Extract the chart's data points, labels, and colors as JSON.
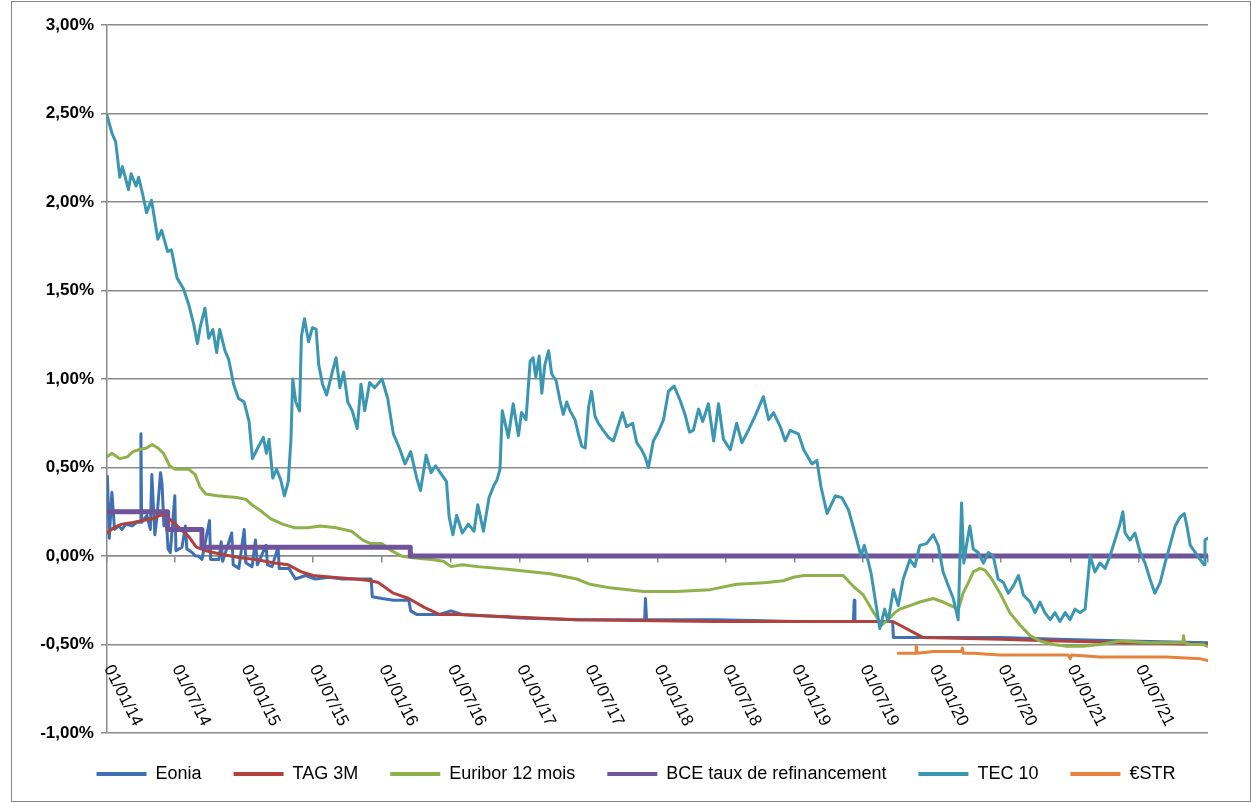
{
  "chart_data": {
    "type": "line",
    "marker": "none",
    "grid": "y",
    "legend": "bottom",
    "xlim": [
      "2014-01-01",
      "2022-01-01"
    ],
    "xticks": [
      {
        "value": "2014-01-01",
        "label": "01/01/14"
      },
      {
        "value": "2014-07-01",
        "label": "01/07/14"
      },
      {
        "value": "2015-01-01",
        "label": "01/01/15"
      },
      {
        "value": "2015-07-01",
        "label": "01/07/15"
      },
      {
        "value": "2016-01-01",
        "label": "01/01/16"
      },
      {
        "value": "2016-07-01",
        "label": "01/07/16"
      },
      {
        "value": "2017-01-01",
        "label": "01/01/17"
      },
      {
        "value": "2017-07-01",
        "label": "01/07/17"
      },
      {
        "value": "2018-01-01",
        "label": "01/01/18"
      },
      {
        "value": "2018-07-01",
        "label": "01/07/18"
      },
      {
        "value": "2019-01-01",
        "label": "01/01/19"
      },
      {
        "value": "2019-07-01",
        "label": "01/07/19"
      },
      {
        "value": "2020-01-01",
        "label": "01/01/20"
      },
      {
        "value": "2020-07-01",
        "label": "01/07/20"
      },
      {
        "value": "2021-01-01",
        "label": "01/01/21"
      },
      {
        "value": "2021-07-01",
        "label": "01/07/21"
      },
      {
        "value": "2022-01-01",
        "label": null
      }
    ],
    "ylim": [
      -1,
      3
    ],
    "yticks": [
      {
        "value": -1,
        "label": "-1,00%"
      },
      {
        "value": -0.5,
        "label": "-0,50%"
      },
      {
        "value": 0,
        "label": "0,00%"
      },
      {
        "value": 0.5,
        "label": "0,50%"
      },
      {
        "value": 1,
        "label": "1,00%"
      },
      {
        "value": 1.5,
        "label": "1,50%"
      },
      {
        "value": 2,
        "label": "2,00%"
      },
      {
        "value": 2.5,
        "label": "2,50%"
      },
      {
        "value": 3,
        "label": "3,00%"
      }
    ],
    "series": [
      {
        "name": "Eonia",
        "color": "#4170b2",
        "x": [
          "2014-01-02",
          "2014-01-07",
          "2014-01-14",
          "2014-01-21",
          "2014-02-01",
          "2014-02-10",
          "2014-02-19",
          "2014-03-08",
          "2014-03-22",
          "2014-03-31",
          "2014-04-01",
          "2014-04-03",
          "2014-04-17",
          "2014-04-26",
          "2014-04-30",
          "2014-05-08",
          "2014-05-14",
          "2014-05-23",
          "2014-05-27",
          "2014-06-01",
          "2014-06-07",
          "2014-06-12",
          "2014-06-18",
          "2014-06-30",
          "2014-07-03",
          "2014-07-19",
          "2014-07-28",
          "2014-08-01",
          "2014-08-15",
          "2014-08-24",
          "2014-09-01",
          "2014-09-10",
          "2014-09-30",
          "2014-10-03",
          "2014-10-25",
          "2014-10-31",
          "2014-11-04",
          "2014-11-28",
          "2014-12-02",
          "2014-12-17",
          "2014-12-31",
          "2015-01-05",
          "2015-01-21",
          "2015-01-30",
          "2015-02-04",
          "2015-02-27",
          "2015-03-03",
          "2015-03-15",
          "2015-03-31",
          "2015-04-03",
          "2015-04-29",
          "2015-05-16",
          "2015-06-12",
          "2015-07-08",
          "2015-08-13",
          "2015-09-17",
          "2015-10-23",
          "2015-12-03",
          "2015-12-06",
          "2016-01-01",
          "2016-01-31",
          "2016-03-12",
          "2016-03-17",
          "2016-04-02",
          "2016-06-01",
          "2016-07-02",
          "2016-08-01",
          "2016-10-22",
          "2017-01-01",
          "2017-06-01",
          "2017-11-28",
          "2017-11-30",
          "2017-12-03",
          "2018-06-01",
          "2019-01-01",
          "2019-06-05",
          "2019-06-07",
          "2019-06-09",
          "2019-09-17",
          "2019-09-19",
          "2020-07-01",
          "2020-12-01",
          "2021-06-01",
          "2021-12-31"
        ],
        "values": [
          0.45,
          0.1,
          0.36,
          0.15,
          0.17,
          0.15,
          0.18,
          0.17,
          0.19,
          0.19,
          0.69,
          0.19,
          0.23,
          0.15,
          0.46,
          0.12,
          0.23,
          0.47,
          0.41,
          0.17,
          0.23,
          0.04,
          0.02,
          0.34,
          0.03,
          0.05,
          0.17,
          0.04,
          0.02,
          0.0,
          0.0,
          -0.02,
          0.2,
          -0.02,
          -0.02,
          0.08,
          -0.03,
          0.13,
          -0.05,
          -0.07,
          0.15,
          -0.04,
          -0.06,
          0.09,
          -0.05,
          0.06,
          -0.05,
          -0.06,
          0.05,
          -0.07,
          -0.07,
          -0.13,
          -0.11,
          -0.13,
          -0.12,
          -0.13,
          -0.13,
          -0.13,
          -0.23,
          -0.24,
          -0.25,
          -0.25,
          -0.31,
          -0.33,
          -0.33,
          -0.31,
          -0.33,
          -0.34,
          -0.35,
          -0.36,
          -0.36,
          -0.24,
          -0.36,
          -0.36,
          -0.37,
          -0.37,
          -0.25,
          -0.37,
          -0.37,
          -0.46,
          -0.46,
          -0.47,
          -0.48,
          -0.49
        ]
      },
      {
        "name": "TAG 3M",
        "color": "#b2403c",
        "x": [
          "2014-01-01",
          "2014-01-19",
          "2014-02-09",
          "2014-03-11",
          "2014-04-06",
          "2014-05-01",
          "2014-05-21",
          "2014-06-04",
          "2014-06-21",
          "2014-07-11",
          "2014-08-06",
          "2014-08-26",
          "2014-09-20",
          "2014-10-31",
          "2014-12-21",
          "2015-01-30",
          "2015-03-22",
          "2015-04-27",
          "2015-06-01",
          "2015-07-02",
          "2015-08-22",
          "2015-10-22",
          "2015-12-02",
          "2015-12-22",
          "2016-01-31",
          "2016-03-12",
          "2016-04-22",
          "2016-06-01",
          "2016-07-22",
          "2016-10-24",
          "2017-06-01",
          "2018-06-01",
          "2019-09-18",
          "2019-12-06",
          "2020-07-01",
          "2020-12-01",
          "2021-06-01",
          "2021-12-31"
        ],
        "values": [
          0.13,
          0.16,
          0.18,
          0.19,
          0.2,
          0.21,
          0.23,
          0.23,
          0.2,
          0.16,
          0.11,
          0.05,
          0.03,
          0.01,
          -0.01,
          -0.02,
          -0.04,
          -0.05,
          -0.09,
          -0.11,
          -0.12,
          -0.13,
          -0.14,
          -0.15,
          -0.21,
          -0.24,
          -0.29,
          -0.33,
          -0.33,
          -0.34,
          -0.36,
          -0.37,
          -0.37,
          -0.46,
          -0.47,
          -0.48,
          -0.49,
          -0.5
        ]
      },
      {
        "name": "Euribor 12 mois",
        "color": "#8fb14a",
        "x": [
          "2014-01-01",
          "2014-01-14",
          "2014-02-04",
          "2014-02-24",
          "2014-03-11",
          "2014-03-26",
          "2014-04-16",
          "2014-05-01",
          "2014-05-16",
          "2014-05-31",
          "2014-06-16",
          "2014-07-01",
          "2014-08-06",
          "2014-08-23",
          "2014-09-05",
          "2014-09-20",
          "2014-10-21",
          "2014-12-11",
          "2015-01-05",
          "2015-01-20",
          "2015-02-10",
          "2015-03-12",
          "2015-04-12",
          "2015-05-12",
          "2015-06-17",
          "2015-07-22",
          "2015-09-01",
          "2015-10-12",
          "2015-11-11",
          "2015-12-02",
          "2016-01-01",
          "2016-01-26",
          "2016-02-21",
          "2016-03-22",
          "2016-05-12",
          "2016-06-12",
          "2016-07-02",
          "2016-08-01",
          "2016-09-11",
          "2016-12-23",
          "2017-03-22",
          "2017-06-01",
          "2017-07-06",
          "2017-08-28",
          "2017-11-25",
          "2018-02-21",
          "2018-05-21",
          "2018-07-30",
          "2018-10-18",
          "2018-12-01",
          "2018-12-28",
          "2019-01-24",
          "2019-04-13",
          "2019-05-09",
          "2019-06-04",
          "2019-07-01",
          "2019-07-23",
          "2019-08-19",
          "2019-09-05",
          "2019-09-23",
          "2019-10-06",
          "2019-11-02",
          "2019-11-28",
          "2020-01-03",
          "2020-01-29",
          "2020-03-10",
          "2020-03-22",
          "2020-04-05",
          "2020-04-18",
          "2020-05-06",
          "2020-05-19",
          "2020-06-06",
          "2020-06-28",
          "2020-07-24",
          "2020-08-20",
          "2020-09-16",
          "2020-10-12",
          "2020-11-17",
          "2020-12-22",
          "2021-02-04",
          "2021-03-20",
          "2021-05-13",
          "2021-07-31",
          "2021-09-13",
          "2021-10-26",
          "2021-10-28",
          "2021-10-31",
          "2021-11-14",
          "2021-12-20",
          "2021-12-29"
        ],
        "values": [
          0.56,
          0.58,
          0.55,
          0.56,
          0.59,
          0.6,
          0.61,
          0.63,
          0.61,
          0.58,
          0.51,
          0.49,
          0.49,
          0.46,
          0.39,
          0.35,
          0.34,
          0.33,
          0.32,
          0.29,
          0.26,
          0.21,
          0.18,
          0.16,
          0.16,
          0.17,
          0.16,
          0.14,
          0.09,
          0.07,
          0.07,
          0.03,
          0.0,
          -0.01,
          -0.02,
          -0.03,
          -0.06,
          -0.05,
          -0.06,
          -0.08,
          -0.1,
          -0.13,
          -0.16,
          -0.18,
          -0.2,
          -0.2,
          -0.19,
          -0.16,
          -0.15,
          -0.14,
          -0.12,
          -0.11,
          -0.11,
          -0.11,
          -0.17,
          -0.22,
          -0.3,
          -0.39,
          -0.36,
          -0.32,
          -0.3,
          -0.28,
          -0.26,
          -0.24,
          -0.26,
          -0.3,
          -0.21,
          -0.15,
          -0.09,
          -0.07,
          -0.08,
          -0.13,
          -0.21,
          -0.32,
          -0.39,
          -0.45,
          -0.48,
          -0.5,
          -0.51,
          -0.51,
          -0.5,
          -0.48,
          -0.49,
          -0.49,
          -0.49,
          -0.45,
          -0.49,
          -0.5,
          -0.5,
          -0.51
        ]
      },
      {
        "name": "BCE taux de refinancement",
        "color": "#6f5499",
        "type": "step",
        "x": [
          "2014-01-01",
          "2014-06-11",
          "2014-09-10",
          "2016-03-16",
          "2021-12-31"
        ],
        "values": [
          0.25,
          0.15,
          0.05,
          0,
          0
        ]
      },
      {
        "name": "TEC 10",
        "color": "#3b97b1",
        "x": [
          "2014-01-01",
          "2014-01-14",
          "2014-01-24",
          "2014-02-04",
          "2014-02-11",
          "2014-02-27",
          "2014-03-06",
          "2014-03-19",
          "2014-03-26",
          "2014-04-06",
          "2014-04-16",
          "2014-04-29",
          "2014-05-16",
          "2014-05-26",
          "2014-06-11",
          "2014-06-21",
          "2014-07-06",
          "2014-07-23",
          "2014-08-06",
          "2014-08-19",
          "2014-08-29",
          "2014-09-05",
          "2014-09-18",
          "2014-09-28",
          "2014-10-09",
          "2014-10-19",
          "2014-10-27",
          "2014-11-10",
          "2014-11-20",
          "2014-12-03",
          "2014-12-16",
          "2014-12-31",
          "2015-01-13",
          "2015-01-22",
          "2015-02-05",
          "2015-02-20",
          "2015-02-28",
          "2015-03-07",
          "2015-03-17",
          "2015-03-27",
          "2015-04-07",
          "2015-04-17",
          "2015-04-27",
          "2015-05-04",
          "2015-05-09",
          "2015-05-17",
          "2015-05-27",
          "2015-06-01",
          "2015-06-09",
          "2015-06-20",
          "2015-06-30",
          "2015-07-10",
          "2015-07-17",
          "2015-07-27",
          "2015-08-07",
          "2015-08-22",
          "2015-09-01",
          "2015-09-11",
          "2015-09-21",
          "2015-10-02",
          "2015-10-14",
          "2015-10-27",
          "2015-11-06",
          "2015-11-16",
          "2015-11-29",
          "2015-12-12",
          "2016-01-01",
          "2016-01-16",
          "2016-01-31",
          "2016-02-16",
          "2016-03-02",
          "2016-03-17",
          "2016-04-02",
          "2016-04-12",
          "2016-04-27",
          "2016-05-10",
          "2016-05-22",
          "2016-06-07",
          "2016-06-20",
          "2016-06-27",
          "2016-07-07",
          "2016-07-17",
          "2016-08-01",
          "2016-08-17",
          "2016-09-01",
          "2016-09-11",
          "2016-09-26",
          "2016-10-11",
          "2016-10-24",
          "2016-11-01",
          "2016-11-09",
          "2016-11-15",
          "2016-11-27",
          "2016-12-01",
          "2016-12-14",
          "2016-12-28",
          "2017-01-05",
          "2017-01-17",
          "2017-01-28",
          "2017-02-05",
          "2017-02-12",
          "2017-02-21",
          "2017-02-28",
          "2017-03-08",
          "2017-03-18",
          "2017-03-26",
          "2017-04-07",
          "2017-04-17",
          "2017-04-26",
          "2017-05-05",
          "2017-05-14",
          "2017-05-27",
          "2017-06-05",
          "2017-06-14",
          "2017-06-23",
          "2017-07-02",
          "2017-07-10",
          "2017-07-19",
          "2017-07-28",
          "2017-08-10",
          "2017-08-24",
          "2017-09-06",
          "2017-09-15",
          "2017-09-30",
          "2017-10-11",
          "2017-10-27",
          "2017-11-07",
          "2017-11-20",
          "2017-11-29",
          "2017-12-08",
          "2017-12-21",
          "2018-01-03",
          "2018-01-17",
          "2018-01-30",
          "2018-02-14",
          "2018-03-02",
          "2018-03-15",
          "2018-03-27",
          "2018-04-06",
          "2018-04-20",
          "2018-05-01",
          "2018-05-16",
          "2018-05-30",
          "2018-06-12",
          "2018-06-25",
          "2018-07-13",
          "2018-07-30",
          "2018-08-13",
          "2018-08-30",
          "2018-09-17",
          "2018-10-09",
          "2018-10-23",
          "2018-11-05",
          "2018-11-23",
          "2018-12-06",
          "2018-12-19",
          "2019-01-10",
          "2019-01-24",
          "2019-02-15",
          "2019-02-28",
          "2019-03-11",
          "2019-03-27",
          "2019-04-18",
          "2019-05-05",
          "2019-05-23",
          "2019-06-14",
          "2019-06-25",
          "2019-07-04",
          "2019-07-22",
          "2019-08-14",
          "2019-08-27",
          "2019-09-05",
          "2019-09-19",
          "2019-10-02",
          "2019-10-15",
          "2019-11-02",
          "2019-11-15",
          "2019-11-28",
          "2019-12-16",
          "2020-01-03",
          "2020-01-16",
          "2020-01-29",
          "2020-02-12",
          "2020-02-25",
          "2020-03-09",
          "2020-03-18",
          "2020-03-24",
          "2020-03-31",
          "2020-04-09",
          "2020-04-18",
          "2020-05-01",
          "2020-05-15",
          "2020-05-28",
          "2020-06-10",
          "2020-06-23",
          "2020-07-07",
          "2020-07-20",
          "2020-08-02",
          "2020-08-16",
          "2020-08-29",
          "2020-09-16",
          "2020-09-29",
          "2020-10-12",
          "2020-10-25",
          "2020-11-08",
          "2020-11-21",
          "2020-12-04",
          "2020-12-18",
          "2020-12-31",
          "2021-01-13",
          "2021-01-26",
          "2021-02-09",
          "2021-02-22",
          "2021-03-07",
          "2021-03-20",
          "2021-04-03",
          "2021-04-16",
          "2021-04-29",
          "2021-05-11",
          "2021-05-20",
          "2021-05-26",
          "2021-06-08",
          "2021-06-21",
          "2021-07-05",
          "2021-07-18",
          "2021-07-31",
          "2021-08-13",
          "2021-08-27",
          "2021-09-09",
          "2021-09-22",
          "2021-10-06",
          "2021-10-19",
          "2021-10-30",
          "2021-11-06",
          "2021-11-15",
          "2021-11-28",
          "2021-12-11",
          "2021-12-22",
          "2021-12-24",
          "2021-12-31"
        ],
        "values": [
          2.49,
          2.39,
          2.34,
          2.14,
          2.2,
          2.07,
          2.16,
          2.09,
          2.14,
          2.04,
          1.94,
          2.01,
          1.79,
          1.84,
          1.72,
          1.73,
          1.57,
          1.51,
          1.42,
          1.31,
          1.2,
          1.29,
          1.4,
          1.23,
          1.28,
          1.15,
          1.28,
          1.16,
          1.11,
          0.97,
          0.89,
          0.87,
          0.76,
          0.55,
          0.61,
          0.67,
          0.58,
          0.66,
          0.44,
          0.49,
          0.43,
          0.34,
          0.42,
          0.65,
          1.0,
          0.87,
          0.82,
          1.24,
          1.34,
          1.21,
          1.29,
          1.28,
          1.08,
          0.97,
          0.91,
          1.04,
          1.12,
          0.95,
          1.04,
          0.87,
          0.82,
          0.72,
          0.97,
          0.82,
          0.98,
          0.95,
          1.0,
          0.89,
          0.69,
          0.61,
          0.52,
          0.59,
          0.44,
          0.37,
          0.57,
          0.47,
          0.51,
          0.46,
          0.42,
          0.22,
          0.12,
          0.23,
          0.13,
          0.18,
          0.14,
          0.29,
          0.14,
          0.33,
          0.4,
          0.43,
          0.49,
          0.82,
          0.71,
          0.67,
          0.86,
          0.68,
          0.81,
          0.77,
          1.1,
          1.12,
          1.01,
          1.13,
          0.92,
          1.08,
          1.16,
          1.03,
          0.99,
          0.88,
          0.8,
          0.87,
          0.82,
          0.77,
          0.69,
          0.62,
          0.61,
          0.84,
          0.93,
          0.79,
          0.75,
          0.71,
          0.67,
          0.65,
          0.71,
          0.81,
          0.73,
          0.75,
          0.64,
          0.6,
          0.56,
          0.5,
          0.65,
          0.7,
          0.77,
          0.93,
          0.96,
          0.88,
          0.8,
          0.7,
          0.71,
          0.83,
          0.76,
          0.86,
          0.65,
          0.86,
          0.66,
          0.6,
          0.75,
          0.64,
          0.71,
          0.79,
          0.9,
          0.77,
          0.81,
          0.73,
          0.65,
          0.71,
          0.69,
          0.6,
          0.52,
          0.54,
          0.39,
          0.24,
          0.34,
          0.33,
          0.26,
          0.09,
          0.0,
          0.06,
          -0.1,
          -0.41,
          -0.3,
          -0.37,
          -0.19,
          -0.28,
          -0.13,
          -0.02,
          -0.06,
          0.06,
          0.07,
          0.12,
          0.06,
          -0.09,
          -0.17,
          -0.24,
          -0.36,
          0.3,
          -0.04,
          0.06,
          0.17,
          0.04,
          0.02,
          -0.04,
          0.02,
          0.0,
          -0.13,
          -0.15,
          -0.21,
          -0.17,
          -0.11,
          -0.22,
          -0.26,
          -0.32,
          -0.26,
          -0.32,
          -0.36,
          -0.32,
          -0.37,
          -0.32,
          -0.36,
          -0.3,
          -0.32,
          -0.3,
          0.0,
          -0.09,
          -0.04,
          -0.07,
          0.0,
          0.09,
          0.17,
          0.25,
          0.13,
          0.09,
          0.13,
          0.02,
          -0.04,
          -0.13,
          -0.21,
          -0.15,
          -0.04,
          0.06,
          0.17,
          0.22,
          0.24,
          0.17,
          0.06,
          0.02,
          -0.02,
          -0.05,
          0.09,
          0.1
        ]
      },
      {
        "name": "€STR",
        "color": "#e6823a",
        "x": [
          "2019-10-02",
          "2019-11-18",
          "2019-11-19",
          "2019-11-21",
          "2020-01-03",
          "2020-03-18",
          "2020-03-20",
          "2020-03-23",
          "2020-04-18",
          "2020-06-28",
          "2020-09-24",
          "2020-12-26",
          "2020-12-31",
          "2021-01-04",
          "2021-03-20",
          "2021-06-17",
          "2021-09-13",
          "2021-12-11",
          "2021-12-31"
        ],
        "values": [
          -0.55,
          -0.55,
          -0.51,
          -0.55,
          -0.54,
          -0.54,
          -0.52,
          -0.55,
          -0.55,
          -0.56,
          -0.56,
          -0.56,
          -0.58,
          -0.56,
          -0.57,
          -0.57,
          -0.57,
          -0.58,
          -0.59
        ]
      }
    ]
  }
}
